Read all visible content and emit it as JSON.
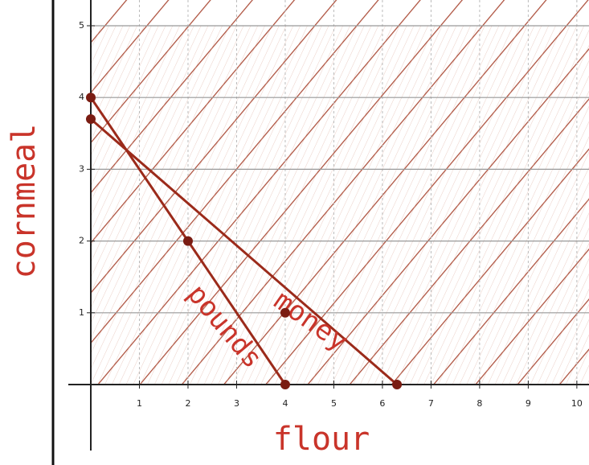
{
  "chart_data": {
    "type": "line",
    "x_label": "flour",
    "y_label": "cornmeal",
    "series": [
      {
        "name": "pounds",
        "color": "#9b2a1a",
        "x": [
          0,
          2,
          4
        ],
        "values": [
          4,
          2,
          0
        ]
      },
      {
        "name": "money",
        "color": "#9b2a1a",
        "x": [
          0,
          6.3
        ],
        "values": [
          3.7,
          0
        ]
      }
    ],
    "marked_points": [
      {
        "x": 4,
        "y": 1
      }
    ],
    "xlim": [
      0,
      10.25
    ],
    "ylim": [
      0,
      5
    ],
    "xticks": [
      1,
      2,
      3,
      4,
      5,
      6,
      7,
      8,
      9,
      10
    ],
    "yticks": [
      1,
      2,
      3,
      4,
      5
    ],
    "grid": true
  }
}
